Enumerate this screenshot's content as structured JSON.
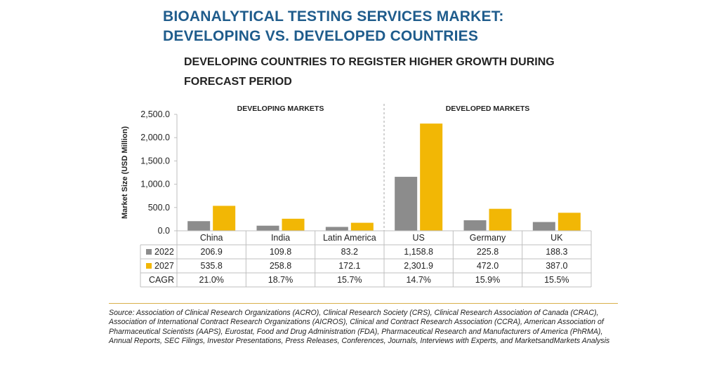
{
  "title_line1": "BIOANALYTICAL TESTING SERVICES MARKET:",
  "title_line2": "DEVELOPING VS. DEVELOPED COUNTRIES",
  "subtitle_line1": "DEVELOPING COUNTRIES TO REGISTER HIGHER GROWTH DURING",
  "subtitle_line2": "FORECAST PERIOD",
  "colors": {
    "series_2022": "#8c8c8c",
    "series_2027": "#f2b705",
    "title": "#1f5c8c"
  },
  "chart_data": {
    "type": "bar",
    "ylabel": "Market Size (USD Million)",
    "ylim": [
      0,
      2500
    ],
    "yticks": [
      "0.0",
      "500.0",
      "1,000.0",
      "1,500.0",
      "2,000.0",
      "2,500.0"
    ],
    "ytick_values": [
      0,
      500,
      1000,
      1500,
      2000,
      2500
    ],
    "group_labels": [
      "DEVELOPING MARKETS",
      "DEVELOPED MARKETS"
    ],
    "categories": [
      "China",
      "India",
      "Latin America",
      "US",
      "Germany",
      "UK"
    ],
    "series": [
      {
        "name": "2022",
        "values": [
          206.9,
          109.8,
          83.2,
          1158.8,
          225.8,
          188.3
        ],
        "labels": [
          "206.9",
          "109.8",
          "83.2",
          "1,158.8",
          "225.8",
          "188.3"
        ]
      },
      {
        "name": "2027",
        "values": [
          535.8,
          258.8,
          172.1,
          2301.9,
          472.0,
          387.0
        ],
        "labels": [
          "535.8",
          "258.8",
          "172.1",
          "2,301.9",
          "472.0",
          "387.0"
        ]
      }
    ],
    "cagr_label": "CAGR",
    "cagr": [
      "21.0%",
      "18.7%",
      "15.7%",
      "14.7%",
      "15.9%",
      "15.5%"
    ]
  },
  "source_text": "Source: Association of Clinical Research Organizations (ACRO), Clinical Research Society (CRS), Clinical Research Association of Canada (CRAC), Association of International Contract Research Organizations (AICROS), Clinical and Contract Research Association (CCRA), American Association of Pharmaceutical Scientists (AAPS), Eurostat, Food and Drug Administration (FDA), Pharmaceutical Research and Manufacturers of America (PhRMA), Annual Reports, SEC Filings, Investor Presentations, Press Releases, Conferences, Journals, Interviews with Experts, and MarketsandMarkets Analysis"
}
